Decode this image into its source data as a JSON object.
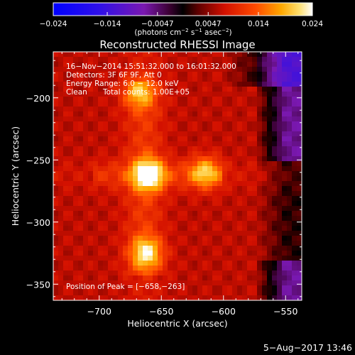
{
  "chart_data": {
    "type": "heatmap",
    "title": "Reconstructed RHESSI Image",
    "xlabel": "Heliocentric X (arcsec)",
    "ylabel": "Heliocentric Y (arcsec)",
    "xlim": [
      -737,
      -537
    ],
    "ylim": [
      -363,
      -163
    ],
    "x_ticks": [
      -700,
      -650,
      -600,
      -550
    ],
    "x_tick_labels": [
      "−700",
      "−650",
      "−600",
      "−550"
    ],
    "y_ticks": [
      -200,
      -250,
      -300,
      -350
    ],
    "y_tick_labels": [
      "−200",
      "−250",
      "−300",
      "−350"
    ],
    "colorbar": {
      "min": -0.024,
      "max": 0.024,
      "tick_values": [
        -0.024,
        -0.014,
        -0.0047,
        0.0047,
        0.014,
        0.024
      ],
      "tick_labels": [
        "−0.024",
        "−0.014",
        "−0.0047",
        "0.0047",
        "0.014",
        "0.024"
      ],
      "unit_prefix": "(photons cm",
      "unit_exp1": "−2",
      "unit_mid": " s",
      "unit_exp2": "−1",
      "unit_mid2": " asec",
      "unit_exp3": "−2",
      "unit_suffix": ")",
      "colormap": "blue-purple-red-yellow-white"
    },
    "annotations": [
      "16−Nov−2014 15:51:32.000 to 16:01:32.000",
      "Detectors: 3F 6F 9F, Att 0",
      "Energy Range: 6.0 − 12.0 keV",
      "Clean",
      "Total counts: 1.00E+05"
    ],
    "peak_label": "Position of Peak = [−658,−263]",
    "peak_position": [
      -658,
      -263
    ],
    "sources": [
      {
        "x": -660,
        "y": -262,
        "peak": 0.024
      },
      {
        "x": -615,
        "y": -260,
        "peak": 0.018
      },
      {
        "x": -662,
        "y": -325,
        "peak": 0.021
      },
      {
        "x": -668,
        "y": -196,
        "peak": 0.016
      }
    ],
    "colors": {
      "background": "#000000",
      "cmap_low": "#0000ff",
      "cmap_mid_low": "#8a1cc8",
      "cmap_mid": "#cc0000",
      "cmap_high": "#ffb000",
      "cmap_top": "#ffffff"
    }
  },
  "footer": {
    "date": "5−Aug−2017 13:46"
  }
}
